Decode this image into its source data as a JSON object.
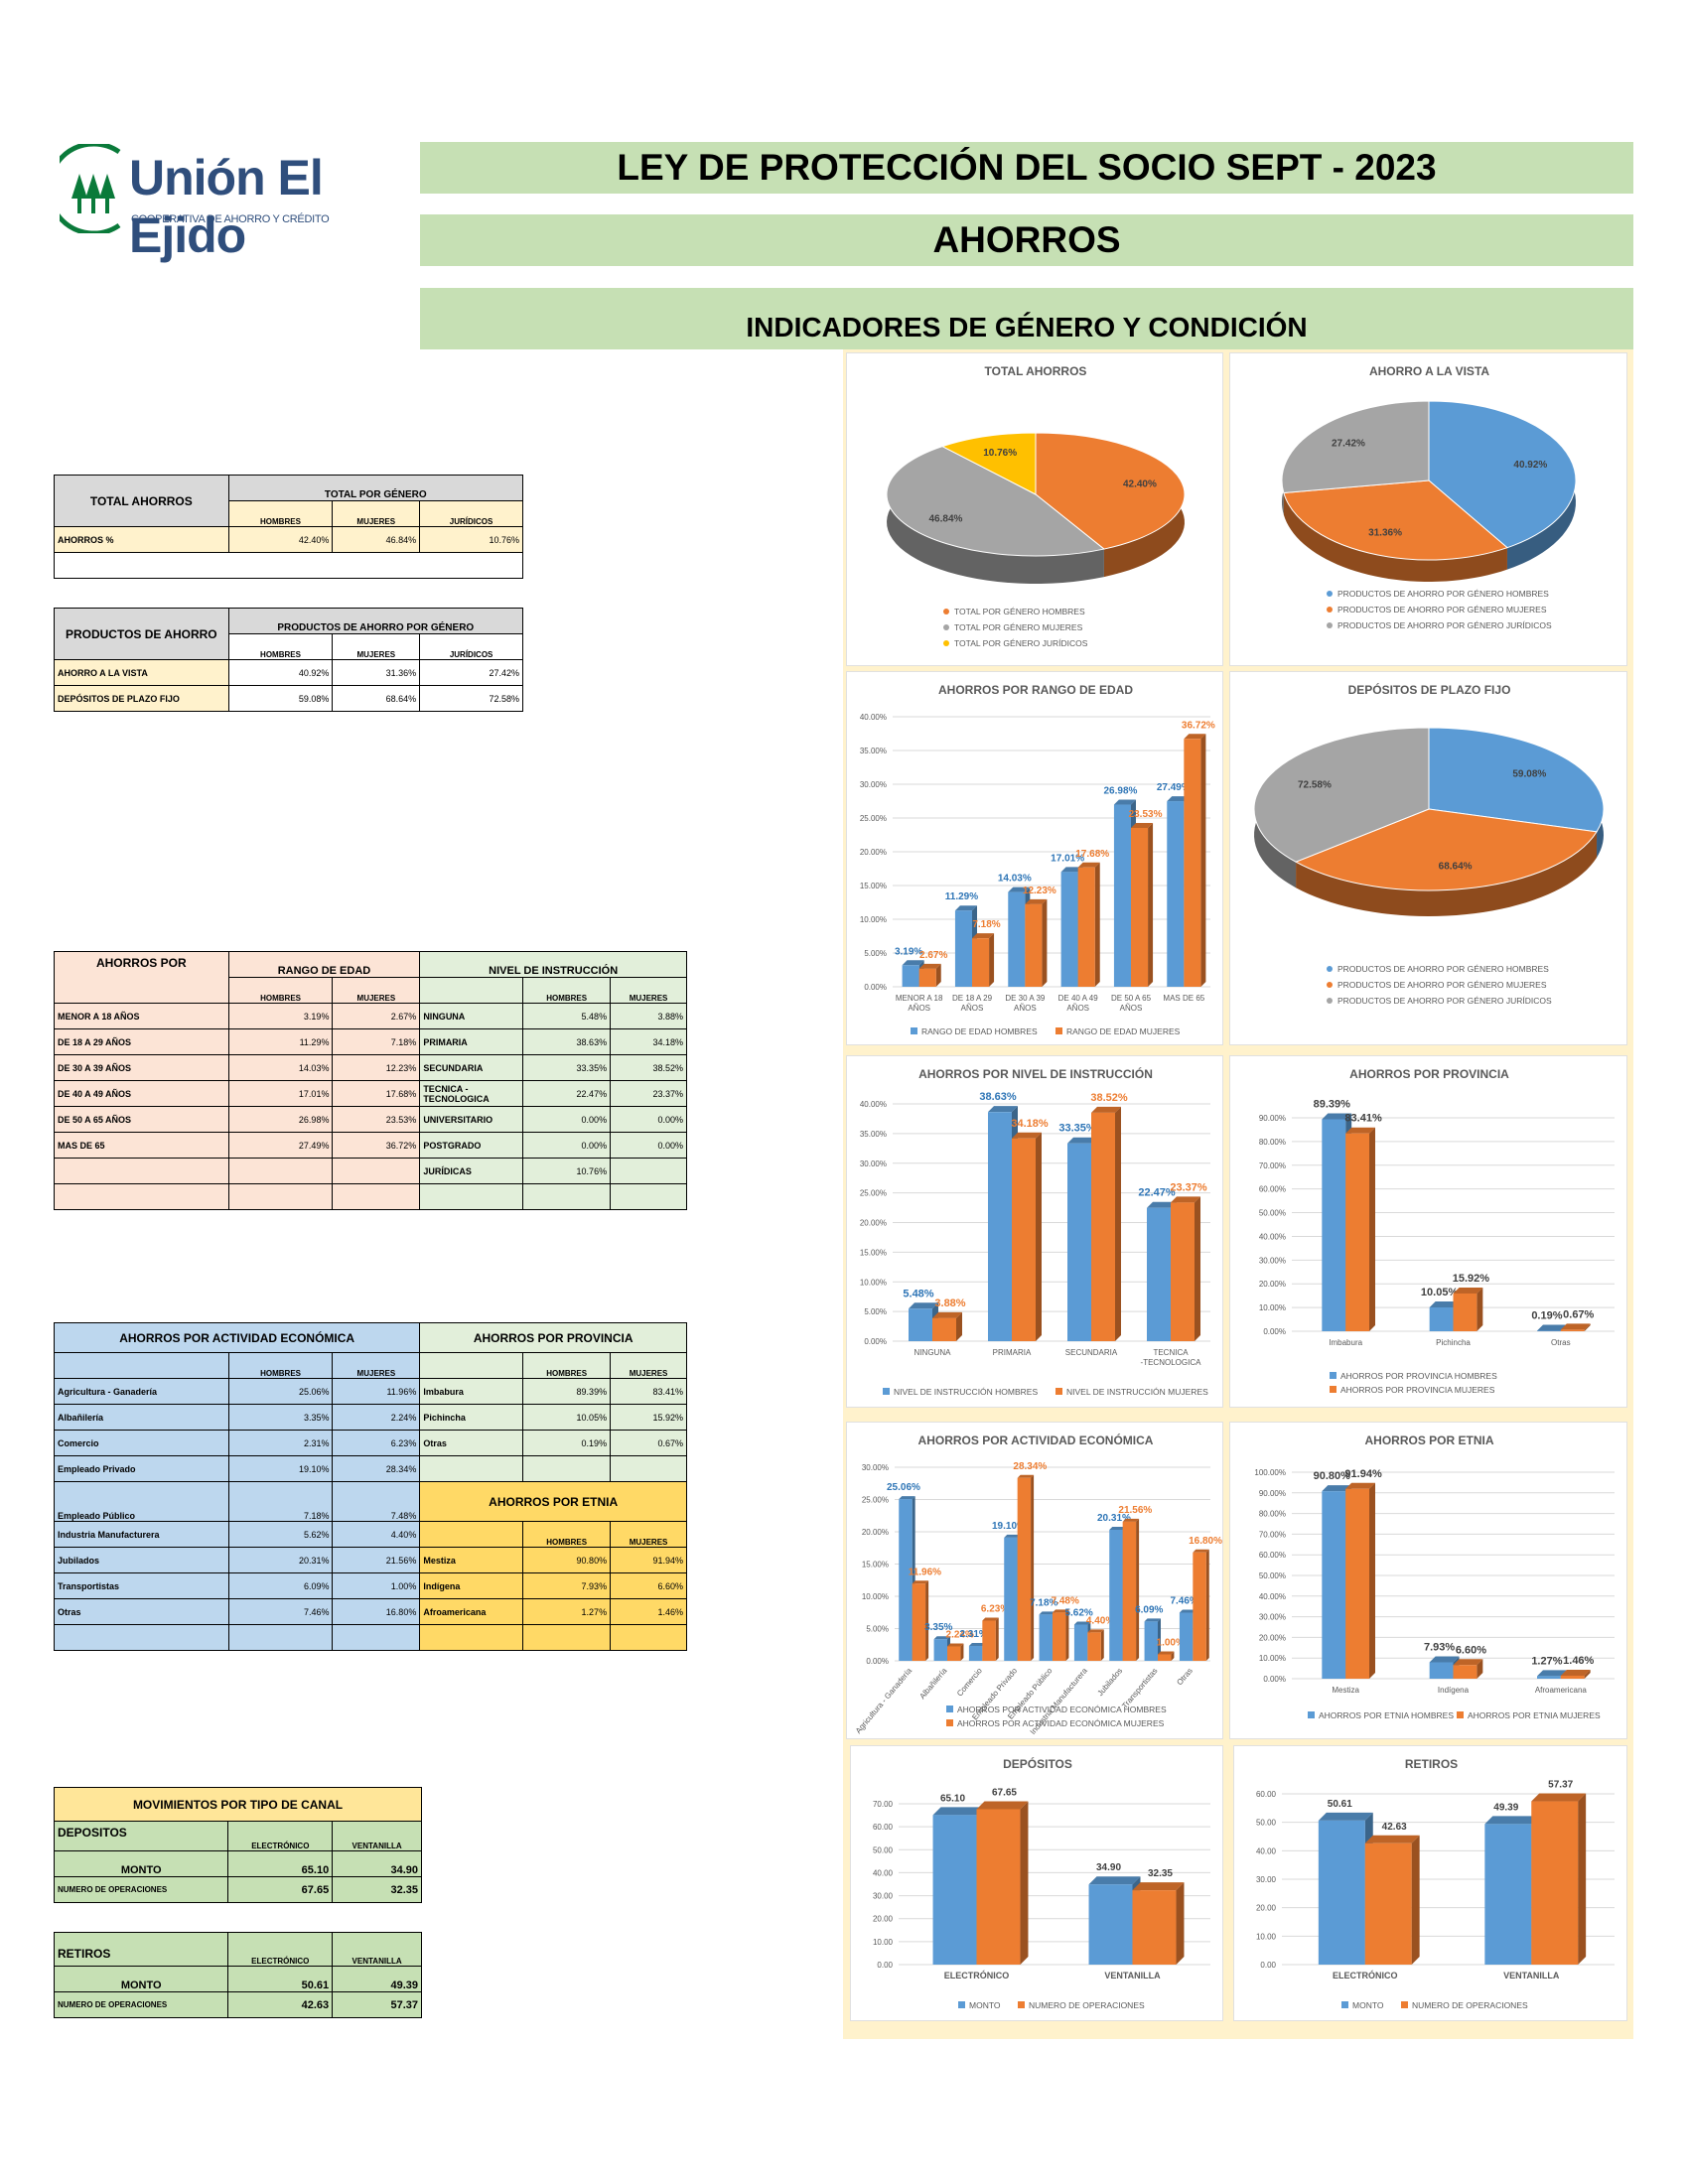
{
  "header": {
    "logo": {
      "name": "Unión El Ejido",
      "tagline": "COOPERATIVA DE AHORRO Y CRÉDITO"
    },
    "title": "LEY DE PROTECCIÓN DEL SOCIO SEPT - 2023",
    "subtitle": "AHORROS",
    "section": "INDICADORES DE GÉNERO Y CONDICIÓN"
  },
  "colors": {
    "hombres": "#5b9bd5",
    "mujeres": "#ed7d31",
    "juridicos_gray": "#a5a5a5",
    "juridicos_gold": "#ffc000",
    "header_green": "#c6e0b4",
    "dashboard_bg": "#fff2cc"
  },
  "tables": {
    "total_ahorros": {
      "title": "TOTAL AHORROS",
      "group": "TOTAL POR GÉNERO",
      "cols": [
        "HOMBRES",
        "MUJERES",
        "JURÍDICOS"
      ],
      "row": {
        "label": "AHORROS %",
        "values": [
          "42.40%",
          "46.84%",
          "10.76%"
        ]
      }
    },
    "productos": {
      "title": "PRODUCTOS DE AHORRO",
      "group": "PRODUCTOS DE AHORRO POR GÉNERO",
      "cols": [
        "HOMBRES",
        "MUJERES",
        "JURÍDICOS"
      ],
      "rows": [
        {
          "label": "AHORRO A LA VISTA",
          "values": [
            "40.92%",
            "31.36%",
            "27.42%"
          ]
        },
        {
          "label": "DEPÓSITOS DE PLAZO FIJO",
          "values": [
            "59.08%",
            "68.64%",
            "72.58%"
          ]
        }
      ]
    },
    "edad_instruccion": {
      "title": "AHORROS POR",
      "group_left": "RANGO DE EDAD",
      "group_right": "NIVEL DE INSTRUCCIÓN",
      "cols": [
        "HOMBRES",
        "MUJERES"
      ],
      "rows": [
        {
          "l": "MENOR A 18 AÑOS",
          "h": "3.19%",
          "m": "2.67%",
          "r": "NINGUNA",
          "rh": "5.48%",
          "rm": "3.88%"
        },
        {
          "l": "DE 18 A 29 AÑOS",
          "h": "11.29%",
          "m": "7.18%",
          "r": "PRIMARIA",
          "rh": "38.63%",
          "rm": "34.18%"
        },
        {
          "l": "DE 30 A 39 AÑOS",
          "h": "14.03%",
          "m": "12.23%",
          "r": "SECUNDARIA",
          "rh": "33.35%",
          "rm": "38.52%"
        },
        {
          "l": "DE 40 A 49 AÑOS",
          "h": "17.01%",
          "m": "17.68%",
          "r": "TECNICA -TECNOLOGICA",
          "rh": "22.47%",
          "rm": "23.37%"
        },
        {
          "l": "DE 50 A 65 AÑOS",
          "h": "26.98%",
          "m": "23.53%",
          "r": "UNIVERSITARIO",
          "rh": "0.00%",
          "rm": "0.00%"
        },
        {
          "l": "MAS DE 65",
          "h": "27.49%",
          "m": "36.72%",
          "r": "POSTGRADO",
          "rh": "0.00%",
          "rm": "0.00%"
        },
        {
          "l": "",
          "h": "",
          "m": "",
          "r": "JURÍDICAS",
          "rh": "10.76%",
          "rm": ""
        }
      ]
    },
    "actividad_provincia": {
      "title_left": "AHORROS POR ACTIVIDAD ECONÓMICA",
      "title_right": "AHORROS POR PROVINCIA",
      "title_etnia": "AHORROS POR ETNIA",
      "cols": [
        "HOMBRES",
        "MUJERES"
      ],
      "actividad": [
        {
          "l": "Agricultura - Ganadería",
          "h": "25.06%",
          "m": "11.96%"
        },
        {
          "l": "Albañilería",
          "h": "3.35%",
          "m": "2.24%"
        },
        {
          "l": "Comercio",
          "h": "2.31%",
          "m": "6.23%"
        },
        {
          "l": "Empleado Privado",
          "h": "19.10%",
          "m": "28.34%"
        },
        {
          "l": "Empleado Público",
          "h": "7.18%",
          "m": "7.48%"
        },
        {
          "l": "Industria Manufacturera",
          "h": "5.62%",
          "m": "4.40%"
        },
        {
          "l": "Jubilados",
          "h": "20.31%",
          "m": "21.56%"
        },
        {
          "l": "Transportistas",
          "h": "6.09%",
          "m": "1.00%"
        },
        {
          "l": "Otras",
          "h": "7.46%",
          "m": "16.80%"
        }
      ],
      "provincia": [
        {
          "l": "Imbabura",
          "h": "89.39%",
          "m": "83.41%"
        },
        {
          "l": "Pichincha",
          "h": "10.05%",
          "m": "15.92%"
        },
        {
          "l": "Otras",
          "h": "0.19%",
          "m": "0.67%"
        }
      ],
      "etnia": [
        {
          "l": "Mestiza",
          "h": "90.80%",
          "m": "91.94%"
        },
        {
          "l": "Indígena",
          "h": "7.93%",
          "m": "6.60%"
        },
        {
          "l": "Afroamericana",
          "h": "1.27%",
          "m": "1.46%"
        }
      ]
    },
    "movimientos": {
      "title": "MOVIMIENTOS POR TIPO DE CANAL",
      "cols": [
        "ELECTRÓNICO",
        "VENTANILLA"
      ],
      "depositos": {
        "label": "DEPOSITOS",
        "monto_label": "MONTO",
        "monto": [
          "65.10",
          "34.90"
        ],
        "ops_label": "NUMERO DE OPERACIONES",
        "ops": [
          "67.65",
          "32.35"
        ]
      },
      "retiros": {
        "label": "RETIROS",
        "monto_label": "MONTO",
        "monto": [
          "50.61",
          "49.39"
        ],
        "ops_label": "NUMERO DE OPERACIONES",
        "ops": [
          "42.63",
          "57.37"
        ]
      }
    }
  },
  "chart_data": [
    {
      "id": "total_ahorros",
      "type": "pie",
      "title": "TOTAL AHORROS",
      "labels": [
        "TOTAL POR GÉNERO HOMBRES",
        "TOTAL POR GÉNERO MUJERES",
        "TOTAL POR GÉNERO JURÍDICOS"
      ],
      "values": [
        42.4,
        46.84,
        10.76
      ],
      "colors": [
        "#ed7d31",
        "#a5a5a5",
        "#ffc000"
      ],
      "legend": "bottom"
    },
    {
      "id": "ahorro_vista",
      "type": "pie",
      "title": "AHORRO A LA VISTA",
      "labels": [
        "PRODUCTOS DE AHORRO POR GÉNERO HOMBRES",
        "PRODUCTOS DE AHORRO POR GÉNERO MUJERES",
        "PRODUCTOS DE AHORRO POR GÉNERO JURÍDICOS"
      ],
      "values": [
        40.92,
        31.36,
        27.42
      ],
      "colors": [
        "#5b9bd5",
        "#ed7d31",
        "#a5a5a5"
      ],
      "legend": "bottom"
    },
    {
      "id": "rango_edad",
      "type": "bar",
      "title": "AHORROS POR RANGO DE EDAD",
      "categories": [
        "MENOR A 18 AÑOS",
        "DE 18 A 29 AÑOS",
        "DE 30 A 39 AÑOS",
        "DE 40 A 49 AÑOS",
        "DE 50 A 65 AÑOS",
        "MAS DE 65"
      ],
      "series": [
        {
          "name": "RANGO DE EDAD HOMBRES",
          "values": [
            3.19,
            11.29,
            14.03,
            17.01,
            26.98,
            27.49
          ]
        },
        {
          "name": "RANGO DE EDAD MUJERES",
          "values": [
            2.67,
            7.18,
            12.23,
            17.68,
            23.53,
            36.72
          ]
        }
      ],
      "ylim": [
        0,
        40
      ],
      "ystep": 5
    },
    {
      "id": "plazo_fijo",
      "type": "pie",
      "title": "DEPÓSITOS DE PLAZO FIJO",
      "labels": [
        "PRODUCTOS DE AHORRO POR GÉNERO HOMBRES",
        "PRODUCTOS DE AHORRO POR GÉNERO MUJERES",
        "PRODUCTOS DE AHORRO POR GÉNERO JURÍDICOS"
      ],
      "values": [
        59.08,
        68.64,
        72.58
      ],
      "colors": [
        "#5b9bd5",
        "#ed7d31",
        "#a5a5a5"
      ],
      "legend": "bottom"
    },
    {
      "id": "nivel_instruccion",
      "type": "bar",
      "title": "AHORROS POR NIVEL DE INSTRUCCIÓN",
      "categories": [
        "NINGUNA",
        "PRIMARIA",
        "SECUNDARIA",
        "TECNICA -TECNOLOGICA"
      ],
      "series": [
        {
          "name": "NIVEL DE INSTRUCCIÓN HOMBRES",
          "values": [
            5.48,
            38.63,
            33.35,
            22.47
          ]
        },
        {
          "name": "NIVEL DE INSTRUCCIÓN MUJERES",
          "values": [
            3.88,
            34.18,
            38.52,
            23.37
          ]
        }
      ],
      "ylim": [
        0,
        40
      ],
      "ystep": 5
    },
    {
      "id": "provincia",
      "type": "bar",
      "title": "AHORROS POR PROVINCIA",
      "categories": [
        "Imbabura",
        "Pichincha",
        "Otras"
      ],
      "series": [
        {
          "name": "AHORROS POR PROVINCIA HOMBRES",
          "values": [
            89.39,
            10.05,
            0.19
          ]
        },
        {
          "name": "AHORROS POR PROVINCIA MUJERES",
          "values": [
            83.41,
            15.92,
            0.67
          ]
        }
      ],
      "ylim": [
        0,
        90
      ],
      "ystep": 10
    },
    {
      "id": "actividad",
      "type": "bar",
      "title": "AHORROS POR ACTIVIDAD ECONÓMICA",
      "categories": [
        "Agricultura - Ganadería",
        "Albañilería",
        "Comercio",
        "Empleado Privado",
        "Empleado Público",
        "Industria Manufacturera",
        "Jubilados",
        "Transportistas",
        "Otras"
      ],
      "series": [
        {
          "name": "AHORROS POR ACTIVIDAD ECONÓMICA HOMBRES",
          "values": [
            25.06,
            3.35,
            2.31,
            19.1,
            7.18,
            5.62,
            20.31,
            6.09,
            7.46
          ]
        },
        {
          "name": "AHORROS POR ACTIVIDAD ECONÓMICA MUJERES",
          "values": [
            11.96,
            2.24,
            6.23,
            28.34,
            7.48,
            4.4,
            21.56,
            1.0,
            16.8
          ]
        }
      ],
      "ylim": [
        0,
        30
      ],
      "ystep": 5
    },
    {
      "id": "etnia",
      "type": "bar",
      "title": "AHORROS POR ETNIA",
      "categories": [
        "Mestiza",
        "Indígena",
        "Afroamericana"
      ],
      "series": [
        {
          "name": "AHORROS POR ETNIA HOMBRES",
          "values": [
            90.8,
            7.93,
            1.27
          ]
        },
        {
          "name": "AHORROS POR ETNIA MUJERES",
          "values": [
            91.94,
            6.6,
            1.46
          ]
        }
      ],
      "ylim": [
        0,
        100
      ],
      "ystep": 10
    },
    {
      "id": "depositos",
      "type": "bar",
      "title": "DEPÓSITOS",
      "categories": [
        "ELECTRÓNICO",
        "VENTANILLA"
      ],
      "series": [
        {
          "name": "MONTO",
          "values": [
            65.1,
            34.9
          ]
        },
        {
          "name": "NUMERO DE OPERACIONES",
          "values": [
            67.65,
            32.35
          ]
        }
      ],
      "ylim": [
        0,
        70
      ],
      "ystep": 10
    },
    {
      "id": "retiros",
      "type": "bar",
      "title": "RETIROS",
      "categories": [
        "ELECTRÓNICO",
        "VENTANILLA"
      ],
      "series": [
        {
          "name": "MONTO",
          "values": [
            50.61,
            49.39
          ]
        },
        {
          "name": "NUMERO DE OPERACIONES",
          "values": [
            42.63,
            57.37
          ]
        }
      ],
      "ylim": [
        0,
        60
      ],
      "ystep": 10
    }
  ]
}
